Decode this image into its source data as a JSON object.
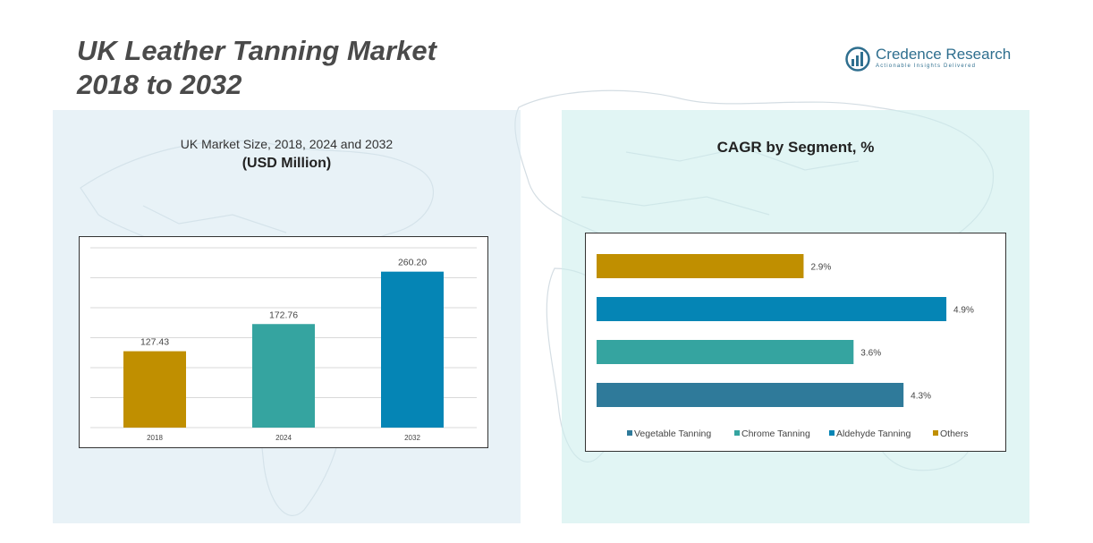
{
  "page": {
    "title_line1": "UK Leather Tanning Market",
    "title_line2": "2018 to 2032"
  },
  "logo": {
    "name": "Credence Research",
    "tagline": "Actionable Insights Delivered"
  },
  "colors": {
    "gold": "#c08f00",
    "teal": "#35a4a0",
    "blue": "#0585b5",
    "steel": "#2f7a9a"
  },
  "chart_data": [
    {
      "type": "bar",
      "title": "UK Market Size, 2018, 2024 and 2032",
      "unit_label": "(USD Million)",
      "categories": [
        "2018",
        "2024",
        "2032"
      ],
      "values": [
        127.43,
        172.76,
        260.2
      ],
      "value_labels": [
        "127.43",
        "172.76",
        "260.20"
      ],
      "colors": [
        "#c08f00",
        "#35a4a0",
        "#0585b5"
      ],
      "ylim": [
        0,
        300
      ],
      "grid": true
    },
    {
      "type": "bar",
      "orientation": "horizontal",
      "title": "CAGR by Segment, %",
      "categories": [
        "Others",
        "Aldehyde Tanning",
        "Chrome Tanning",
        "Vegetable Tanning"
      ],
      "values": [
        2.9,
        4.9,
        3.6,
        4.3
      ],
      "value_labels": [
        "2.9%",
        "4.9%",
        "3.6%",
        "4.3%"
      ],
      "colors": [
        "#c08f00",
        "#0585b5",
        "#35a4a0",
        "#2f7a9a"
      ],
      "legend": [
        "Vegetable Tanning",
        "Chrome Tanning",
        "Aldehyde Tanning",
        "Others"
      ],
      "legend_colors": [
        "#2f7a9a",
        "#35a4a0",
        "#0585b5",
        "#c08f00"
      ],
      "legend_position": "bottom",
      "xlim": [
        0,
        5.2
      ],
      "grid": false
    }
  ]
}
